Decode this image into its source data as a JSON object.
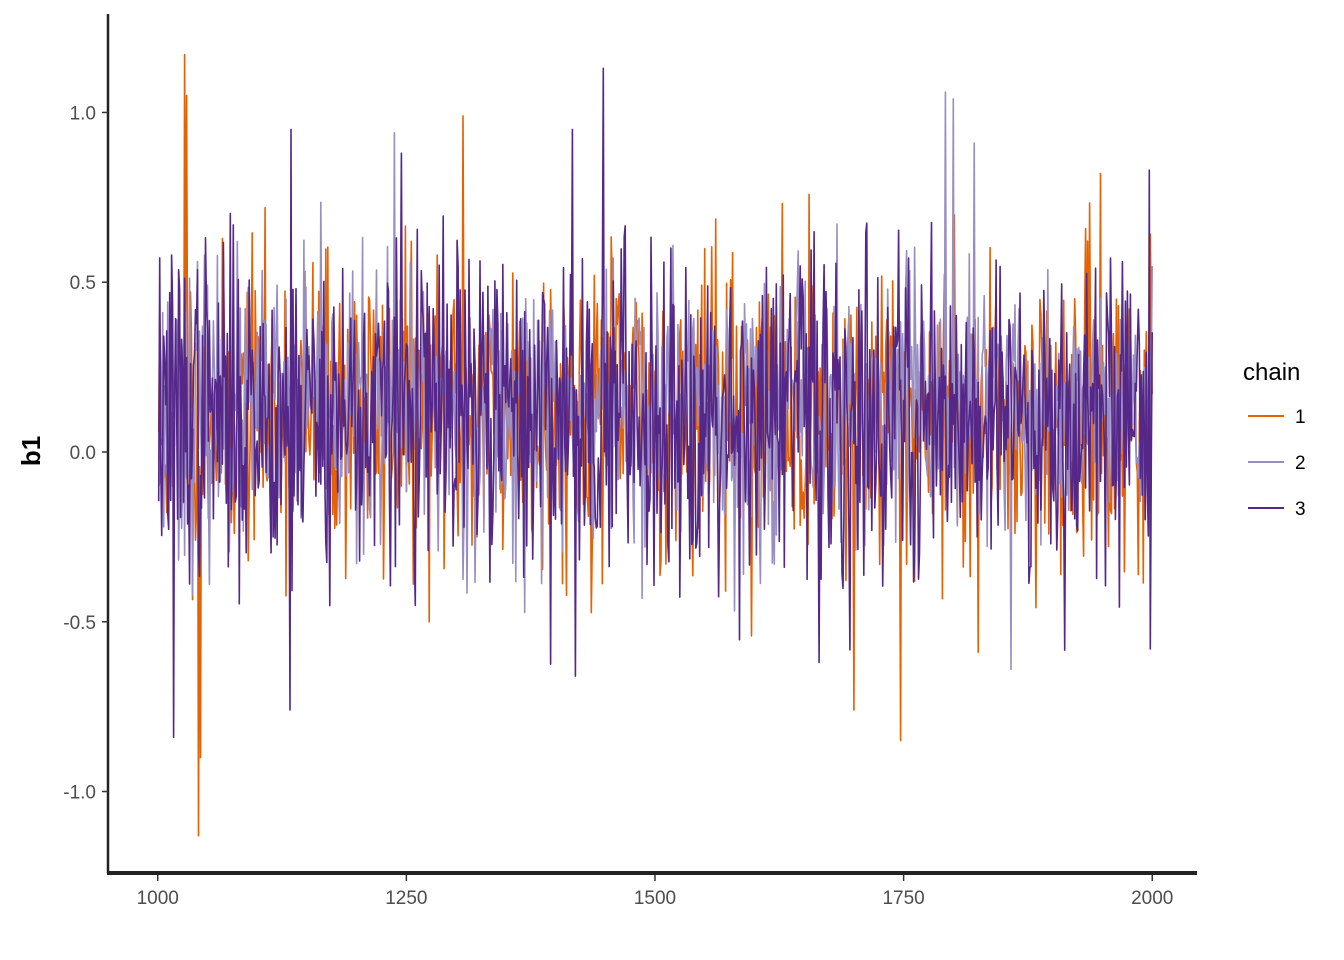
{
  "chart_data": {
    "type": "line",
    "title": "",
    "xlabel": "",
    "ylabel": "b1",
    "xlim": [
      950,
      2045
    ],
    "ylim": [
      -1.24,
      1.29
    ],
    "x_ticks": [
      1000,
      1250,
      1500,
      1750,
      2000
    ],
    "y_ticks": [
      -1.0,
      -0.5,
      0.0,
      0.5,
      1.0
    ],
    "x_tick_labels": [
      "1000",
      "1250",
      "1500",
      "1750",
      "2000"
    ],
    "y_tick_labels": [
      "-1.0",
      "-0.5",
      "0.0",
      "0.5",
      "1.0"
    ],
    "grid": false,
    "legend": {
      "title": "chain",
      "position": "right"
    },
    "x_range": [
      1001,
      2000
    ],
    "series": [
      {
        "name": "1",
        "color": "#e66101",
        "mean": 0.12,
        "sd": 0.22,
        "seed": 11,
        "spikes": [
          [
            1027,
            1.17
          ],
          [
            1029,
            1.05
          ],
          [
            1041,
            -1.13
          ],
          [
            1043,
            -0.9
          ],
          [
            1307,
            0.99
          ],
          [
            1700,
            -0.76
          ],
          [
            1747,
            -0.85
          ],
          [
            1825,
            -0.59
          ],
          [
            1948,
            0.82
          ]
        ]
      },
      {
        "name": "2",
        "color": "#998ec3",
        "mean": 0.12,
        "sd": 0.2,
        "seed": 23,
        "spikes": [
          [
            1238,
            0.94
          ],
          [
            1792,
            1.06
          ],
          [
            1800,
            1.04
          ],
          [
            1821,
            0.91
          ],
          [
            1858,
            -0.64
          ]
        ]
      },
      {
        "name": "3",
        "color": "#542788",
        "mean": 0.12,
        "sd": 0.24,
        "seed": 37,
        "spikes": [
          [
            1016,
            -0.84
          ],
          [
            1133,
            -0.76
          ],
          [
            1134,
            0.95
          ],
          [
            1245,
            0.88
          ],
          [
            1420,
            -0.66
          ],
          [
            1448,
            1.13
          ],
          [
            1417,
            0.95
          ],
          [
            1665,
            -0.62
          ],
          [
            1997,
            0.83
          ],
          [
            1998,
            -0.58
          ]
        ]
      }
    ]
  }
}
